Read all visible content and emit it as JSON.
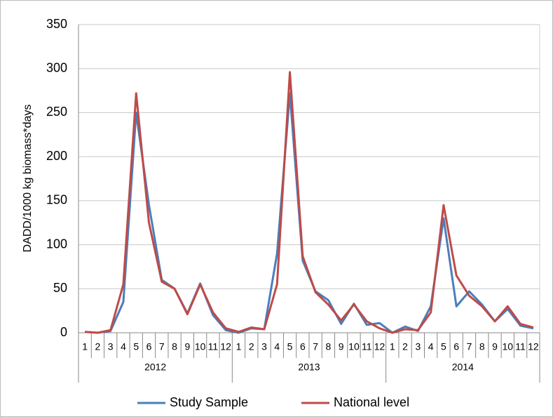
{
  "chart_data": {
    "type": "line",
    "y_label": "DADD/1000  kg biomass*days",
    "categories": [
      "1",
      "2",
      "3",
      "4",
      "5",
      "6",
      "7",
      "8",
      "9",
      "10",
      "11",
      "12",
      "1",
      "2",
      "3",
      "4",
      "5",
      "6",
      "7",
      "8",
      "9",
      "10",
      "11",
      "12",
      "1",
      "2",
      "3",
      "4",
      "5",
      "6",
      "7",
      "8",
      "9",
      "10",
      "11",
      "12"
    ],
    "group_labels": [
      "2012",
      "2013",
      "2014"
    ],
    "series": [
      {
        "name": "Study Sample",
        "color": "#4a7ebb",
        "values": [
          1,
          0,
          2,
          35,
          250,
          145,
          60,
          50,
          22,
          56,
          20,
          3,
          0,
          5,
          4,
          90,
          272,
          82,
          47,
          37,
          10,
          33,
          9,
          11,
          0,
          7,
          2,
          30,
          130,
          30,
          47,
          32,
          13,
          27,
          8,
          5
        ]
      },
      {
        "name": "National level",
        "color": "#be4b48",
        "values": [
          1,
          0,
          3,
          55,
          272,
          125,
          58,
          50,
          21,
          55,
          23,
          5,
          1,
          6,
          4,
          55,
          296,
          87,
          46,
          32,
          14,
          32,
          13,
          5,
          0,
          4,
          3,
          23,
          145,
          65,
          42,
          30,
          13,
          30,
          10,
          6
        ]
      }
    ],
    "ylim": [
      0,
      350
    ],
    "yticks": [
      0,
      50,
      100,
      150,
      200,
      250,
      300,
      350
    ],
    "grid": true,
    "legend": "bottom"
  }
}
